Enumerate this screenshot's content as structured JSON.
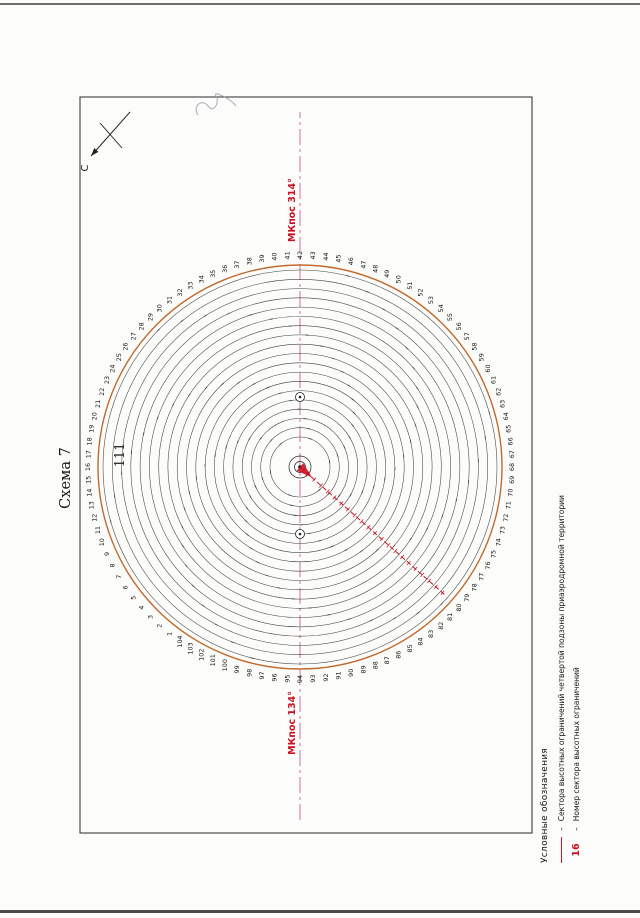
{
  "page": {
    "number": "111",
    "title": "Схема 7"
  },
  "compass": {
    "north_label": "С"
  },
  "diagram": {
    "course_right": "МКпос 314°",
    "course_left": "МКпос 134°",
    "sector_count": 104,
    "ring_count": 19,
    "sector_number_at_right": 42,
    "colors": {
      "sector_boundary_red": "#cc1122",
      "outer_ring_orange": "#c26a2c",
      "centerline_magenta": "#cf6fa8",
      "ring_gray": "#3f3f3f"
    }
  },
  "legend": {
    "title": "Условные обозначения",
    "items": [
      {
        "symbol_icon": "red-line-icon",
        "symbol": "",
        "dash": "–",
        "label": "Сектора высотных ограничений четвертой подзоны приаэродромной территории"
      },
      {
        "symbol_icon": "sector-number",
        "symbol": "16",
        "dash": "–",
        "label": "Номер сектора высотных ограничений"
      }
    ]
  }
}
